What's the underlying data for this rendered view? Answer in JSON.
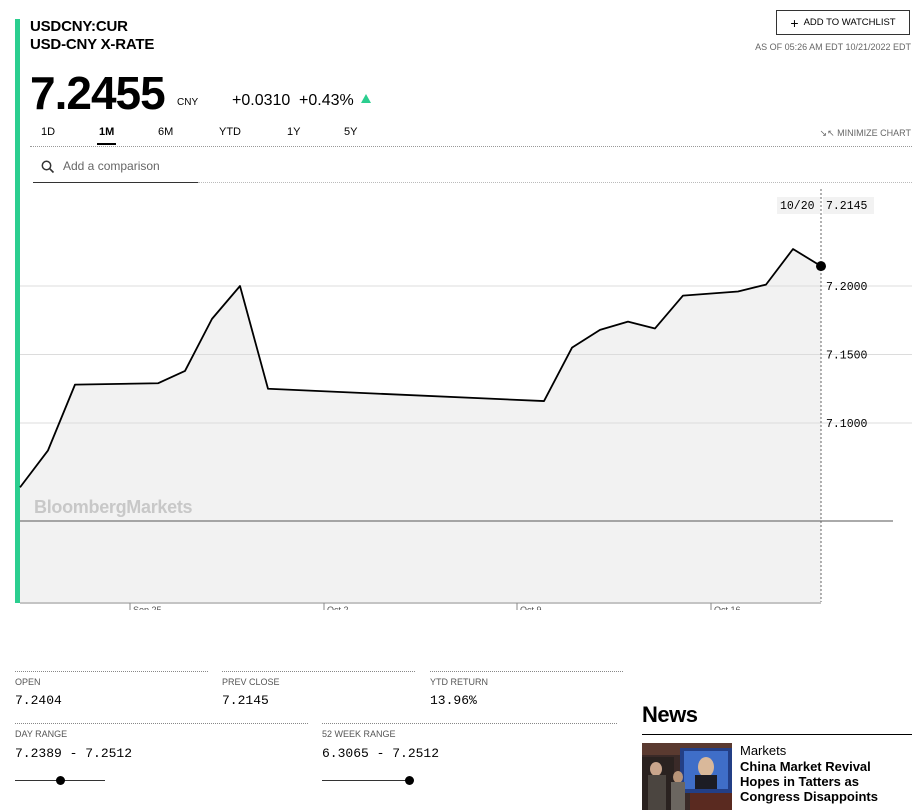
{
  "header": {
    "ticker": "USDCNY:CUR",
    "name": "USD-CNY X-RATE",
    "price": "7.2455",
    "currency": "CNY",
    "change": "+0.0310",
    "change_pct": "+0.43%",
    "watchlist_label": "ADD TO WATCHLIST",
    "as_of": "AS OF 05:26 AM EDT 10/21/2022 EDT"
  },
  "ranges": [
    "1D",
    "1M",
    "6M",
    "YTD",
    "1Y",
    "5Y"
  ],
  "active_range": "1M",
  "minimize_label": "MINIMIZE CHART",
  "search": {
    "placeholder": "Add a comparison"
  },
  "chart_data": {
    "type": "area",
    "x": [
      "Sep 20",
      "Sep 21",
      "Sep 22",
      "Sep 23",
      "Sep 26",
      "Sep 27",
      "Sep 28",
      "Sep 29",
      "Sep 30",
      "Oct 10",
      "Oct 11",
      "Oct 12",
      "Oct 13",
      "Oct 14",
      "Oct 17",
      "Oct 18",
      "Oct 19",
      "Oct 20"
    ],
    "values": [
      7.053,
      7.08,
      7.128,
      7.129,
      7.138,
      7.176,
      7.2,
      7.125,
      7.116,
      7.155,
      7.168,
      7.174,
      7.169,
      7.193,
      7.196,
      7.201,
      7.227,
      7.2145
    ],
    "ylim": [
      7.03,
      7.26
    ],
    "yticks": [
      "7.2000",
      "7.1500",
      "7.1000"
    ],
    "prev_close": 7.033,
    "xtick_labels": [
      "Sep 25",
      "Oct 2",
      "Oct 9",
      "Oct 16"
    ],
    "watermark": "BloombergMarkets",
    "tooltip": {
      "date": "10/20",
      "value": "7.2145"
    },
    "line_color": "#000000",
    "fill_color": "#f2f2f2"
  },
  "stats": {
    "open": {
      "label": "OPEN",
      "value": "7.2404"
    },
    "prev_close": {
      "label": "PREV CLOSE",
      "value": "7.2145"
    },
    "ytd_return": {
      "label": "YTD RETURN",
      "value": "13.96%"
    },
    "day_range": {
      "label": "DAY RANGE",
      "value": "7.2389 - 7.2512",
      "position": 0.5
    },
    "week52_range": {
      "label": "52 WEEK RANGE",
      "value": "6.3065 - 7.2512",
      "position": 0.97
    }
  },
  "news": {
    "title": "News",
    "items": [
      {
        "category": "Markets",
        "headline": "China Market Revival Hopes in Tatters as Congress Disappoints"
      }
    ]
  },
  "colors": {
    "accent": "#2bce8f",
    "up": "#2bce8f"
  }
}
